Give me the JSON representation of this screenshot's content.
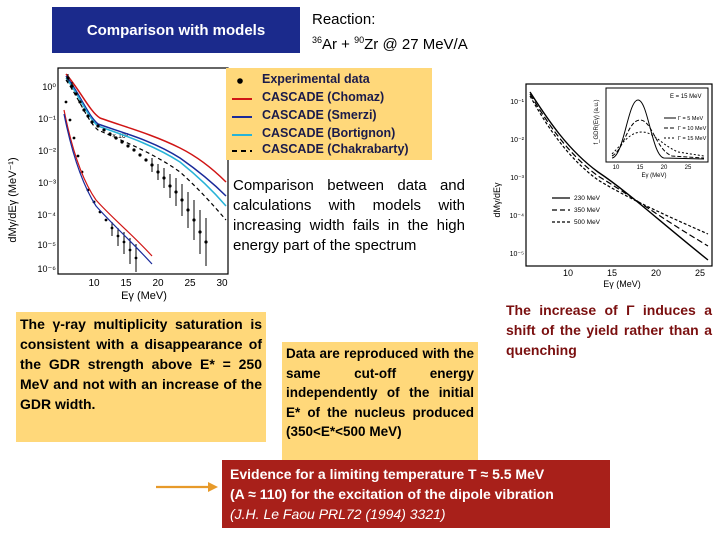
{
  "title": "Comparison with models",
  "reaction": {
    "label": "Reaction:",
    "a1_mass": "36",
    "a1_sym": "Ar + ",
    "a2_mass": "90",
    "a2_sym": "Zr   @ 27 MeV/A"
  },
  "legend": {
    "items": [
      {
        "label": "Experimental data",
        "color": "#000000",
        "style": "dot"
      },
      {
        "label": "CASCADE (Chomaz)",
        "color": "#d01515",
        "style": "solid"
      },
      {
        "label": "CASCADE (Smerzi)",
        "color": "#1a2a9a",
        "style": "solid"
      },
      {
        "label": "CASCADE (Bortignon)",
        "color": "#27b3d8",
        "style": "solid"
      },
      {
        "label": "CASCADE (Chakrabarty)",
        "color": "#000000",
        "style": "dashed"
      }
    ]
  },
  "comparison_text": "Comparison between data and calculations with models with increasing width fails in the high energy part of the spectrum",
  "left_plot": {
    "ylabel": "dMγ/dEγ (MeV⁻¹)",
    "xlabel": "Eγ (MeV)",
    "yticks": [
      "10⁰",
      "10⁻¹",
      "10⁻²",
      "10⁻³",
      "10⁻⁴",
      "10⁻⁵",
      "10⁻⁶"
    ],
    "xticks": [
      "10",
      "15",
      "20",
      "25",
      "30"
    ],
    "inline_note": "× 10³"
  },
  "right_plot": {
    "ylabel": "dMγ/dEγ",
    "xlabel": "Eγ (MeV)",
    "yticks": [
      "10⁻¹",
      "10⁻²",
      "10⁻³",
      "10⁻⁴",
      "10⁻⁵"
    ],
    "xticks": [
      "10",
      "15",
      "20",
      "25"
    ],
    "legend": [
      "230 MeV",
      "350 MeV",
      "500 MeV"
    ],
    "inset": {
      "ylabel": "f_GDR(Eγ) (a.u.)",
      "xlabel": "Eγ (MeV)",
      "xticks": [
        "10",
        "15",
        "20",
        "25"
      ],
      "energy": "E = 15 MeV",
      "legend": [
        "Γ = 5 MeV",
        "Γ = 10 MeV",
        "Γ = 15 MeV"
      ]
    }
  },
  "saturation_text": "The γ-ray multiplicity saturation is consistent with a disappearance of the GDR strength above E* = 250 MeV and not with an increase of the GDR width.",
  "reproduced_text": "Data are reproduced with the same cut-off energy independently of the initial E* of the nucleus produced (350<E*<500 MeV)",
  "gamma_text": "The increase of Γ induces a shift of the yield rather than a quenching",
  "evidence": {
    "line1": "Evidence for a limiting temperature T ≈ 5.5 MeV",
    "line2": "(A ≈ 110) for the excitation of the dipole vibration",
    "reference": "(J.H. Le Faou PRL72 (1994) 3321)"
  }
}
